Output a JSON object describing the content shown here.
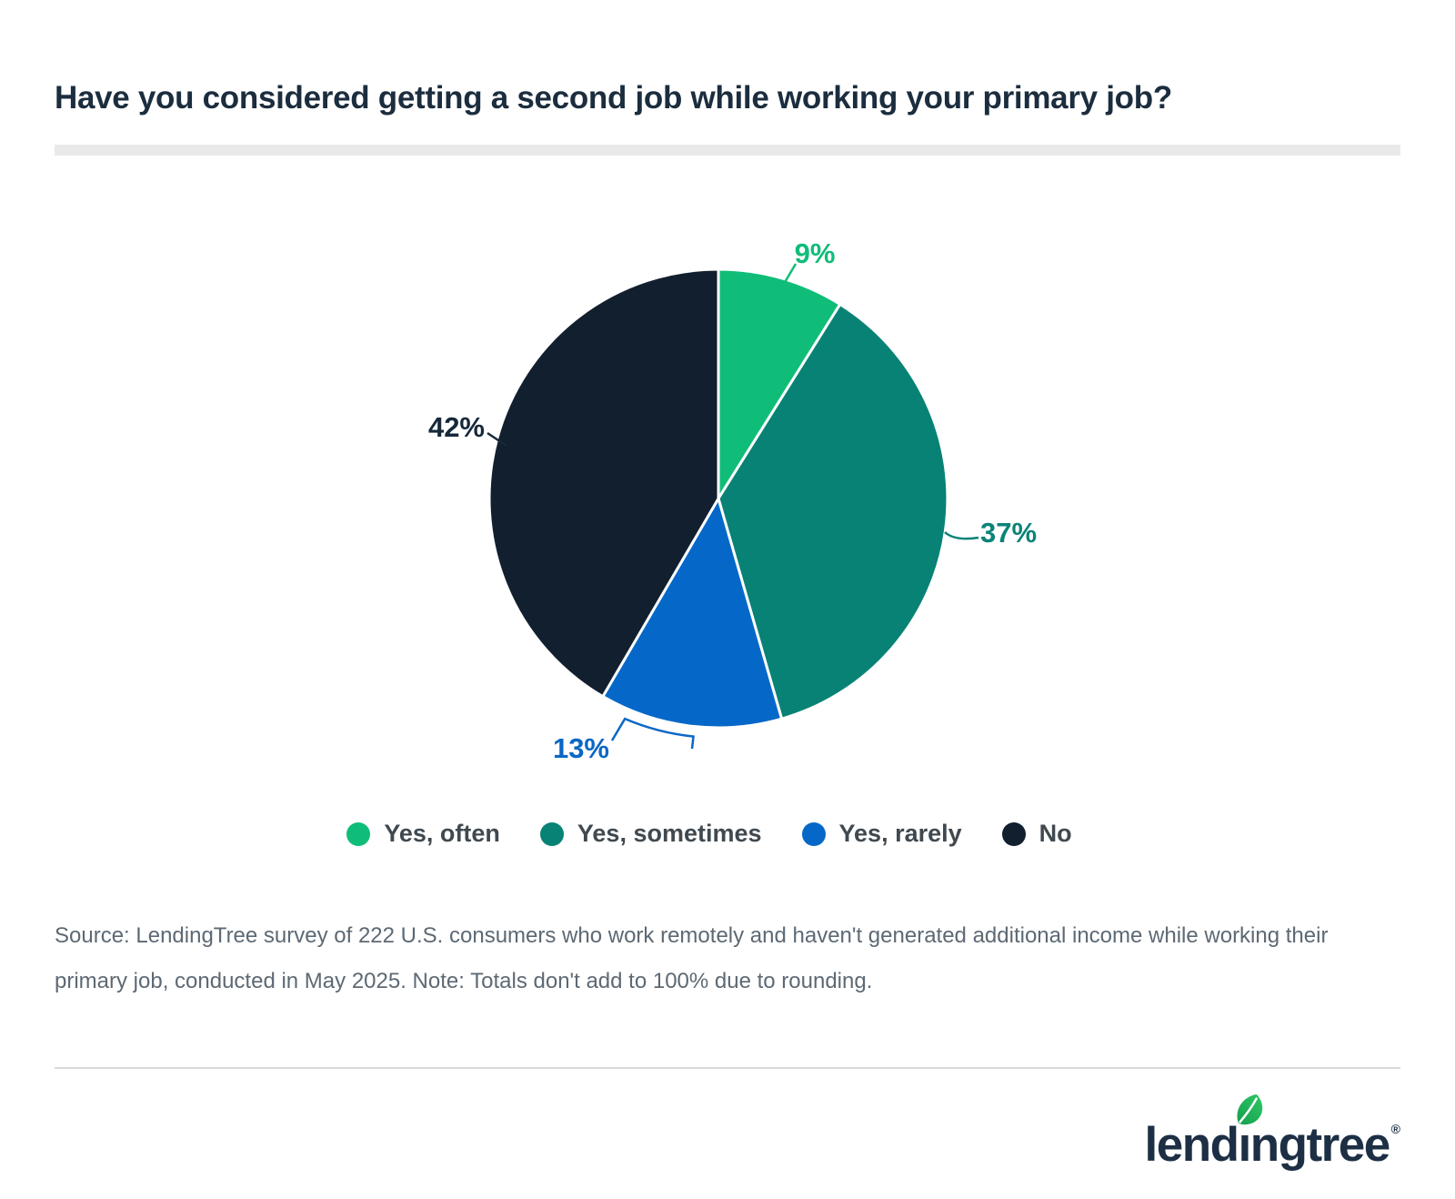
{
  "header": {
    "title": "Have you considered getting a second job while working your primary job?"
  },
  "chart_data": {
    "type": "pie",
    "title": "Have you considered getting a second job while working your primary job?",
    "categories": [
      "Yes, often",
      "Yes, sometimes",
      "Yes, rarely",
      "No"
    ],
    "values": [
      9,
      37,
      13,
      42
    ],
    "unit": "%",
    "value_labels": [
      "9%",
      "37%",
      "13%",
      "42%"
    ],
    "colors": [
      "#10bd78",
      "#088275",
      "#0568c8",
      "#111f2e"
    ],
    "label_colors": [
      "#10bd78",
      "#0b8378",
      "#0b67c5",
      "#16283a"
    ],
    "start_angle_deg": 0,
    "direction": "clockwise",
    "legend_position": "bottom"
  },
  "footer": {
    "source_text": "Source: LendingTree survey of 222 U.S. consumers who work remotely and haven't generated additional income while working their primary job, conducted in May 2025. Note: Totals don't add to 100% due to rounding.",
    "logo_text": "lendingtree",
    "registered_mark": "®"
  }
}
